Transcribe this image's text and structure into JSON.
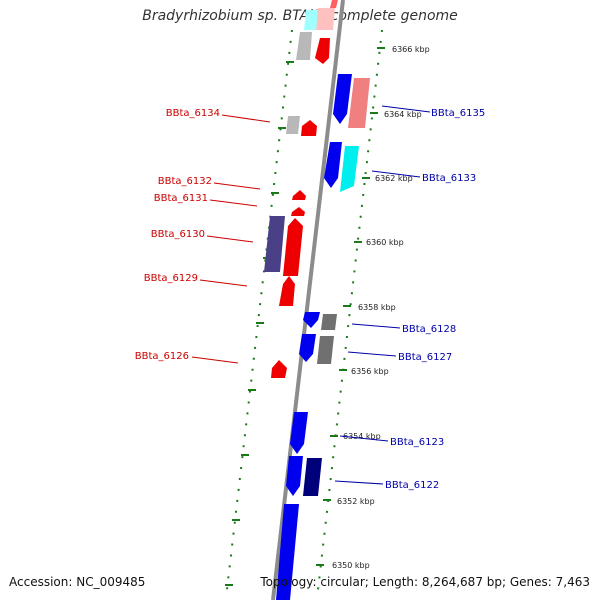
{
  "title": "Bradyrhizobium sp. BTAi1, complete genome",
  "accession": "Accession: NC_009485",
  "summary": "Topology: circular; Length: 8,264,687 bp; Genes: 7,463",
  "colors": {
    "backbone": "#8c8c8c",
    "ruler": "#1a7a1a",
    "left_label": "#cc0000",
    "right_label": "#0000aa"
  },
  "ticks": [
    "6366 kbp",
    "6364 kbp",
    "6362 kbp",
    "6360 kbp",
    "6358 kbp",
    "6356 kbp",
    "6354 kbp",
    "6352 kbp",
    "6350 kbp"
  ],
  "left_labels": [
    "BBta_6134",
    "BBta_6132",
    "BBta_6131",
    "BBta_6130",
    "BBta_6129",
    "BBta_6126"
  ],
  "right_labels": [
    "BBta_6135",
    "BBta_6133",
    "BBta_6128",
    "BBta_6127",
    "BBta_6123",
    "BBta_6122"
  ]
}
